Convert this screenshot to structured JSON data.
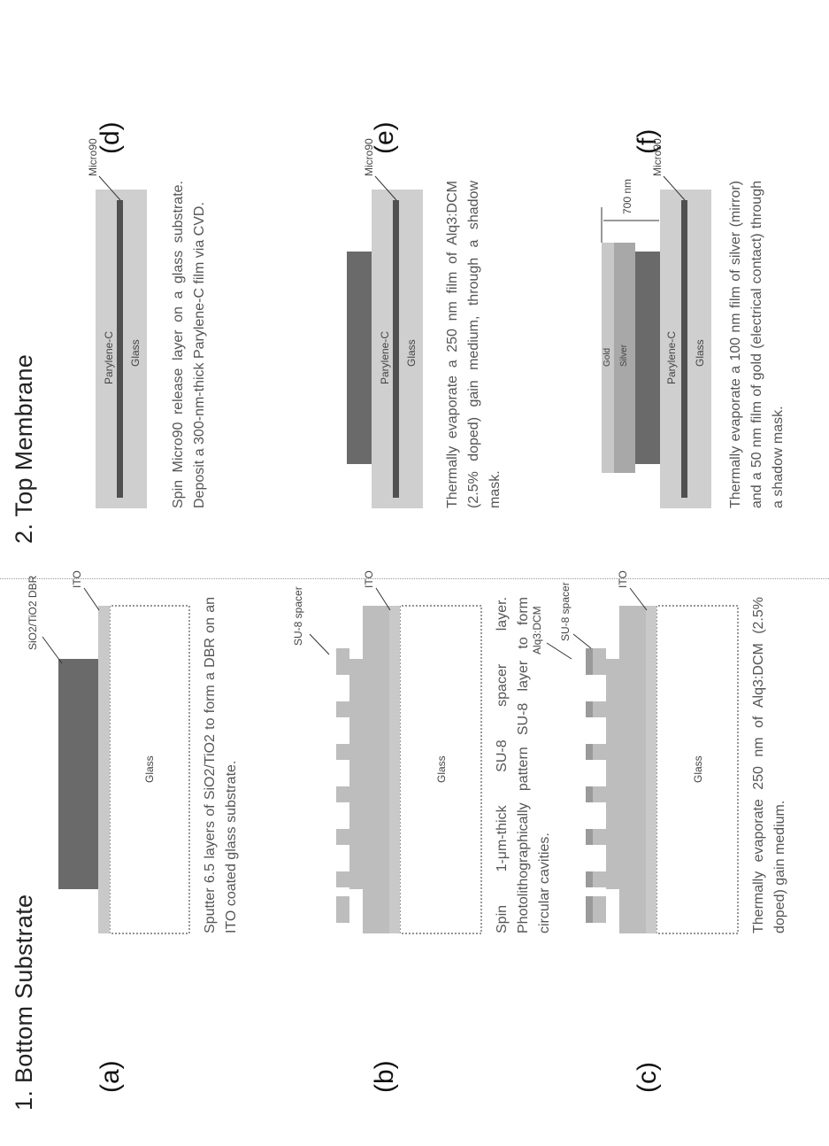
{
  "section1": {
    "title": "1. Bottom Substrate"
  },
  "section2": {
    "title": "2. Top Membrane"
  },
  "panels": {
    "a": {
      "label": "(a)",
      "caption": "Sputter 6.5 layers of SiO2/TiO2 to form a DBR on an ITO coated glass substrate.",
      "glass": "Glass",
      "dbr": "SiO2/TiO2 DBR",
      "ito": "ITO"
    },
    "b": {
      "label": "(b)",
      "caption": "Spin 1-μm-thick SU-8 spacer layer. Photolithographically pattern SU-8 layer to form circular cavities.",
      "glass": "Glass",
      "su8": "SU-8 spacer",
      "ito": "ITO"
    },
    "c": {
      "label": "(c)",
      "caption": "Thermally evaporate 250 nm of Alq3:DCM (2.5% doped) gain medium.",
      "glass": "Glass",
      "alq": "Alq3:DCM",
      "su8": "SU-8 spacer",
      "ito": "ITO"
    },
    "d": {
      "label": "(d)",
      "caption": "Spin Micro90 release layer on a glass substrate. Deposit a 300-nm-thick Parylene-C film via CVD.",
      "parylene": "Parylene-C",
      "glass": "Glass",
      "micro": "Micro90"
    },
    "e": {
      "label": "(e)",
      "caption": "Thermally evaporate a 250 nm film of Alq3:DCM (2.5% doped) gain medium, through a shadow mask.",
      "parylene": "Parylene-C",
      "glass": "Glass",
      "micro": "Micro90"
    },
    "f": {
      "label": "(f)",
      "caption": "Thermally evaporate a 100 nm film of silver (mirror) and a 50 nm film of gold (electrical contact) through a shadow mask.",
      "gold": "Gold",
      "silver": "Silver",
      "parylene": "Parylene-C",
      "glass": "Glass",
      "dim": "700 nm",
      "micro": "Micro90"
    }
  }
}
